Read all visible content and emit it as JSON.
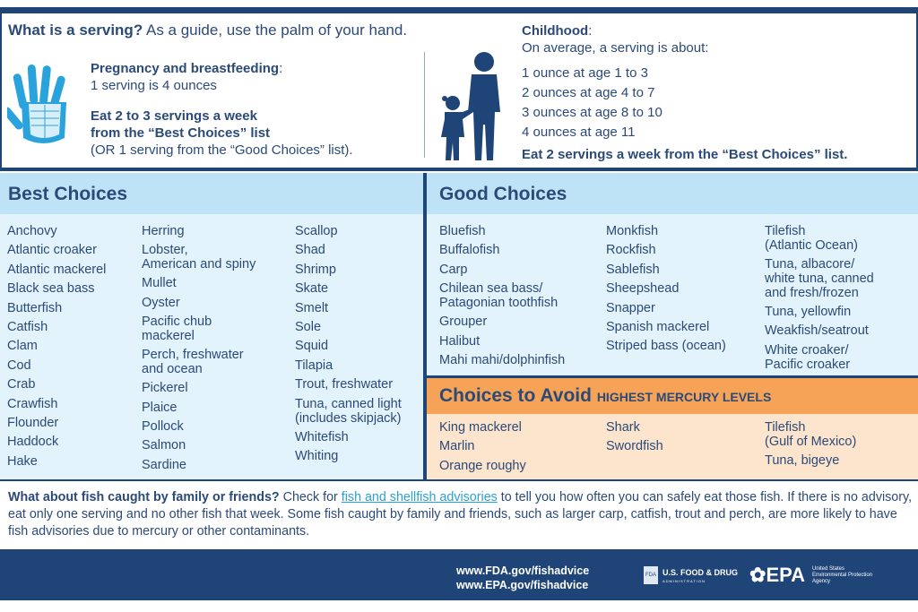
{
  "serving": {
    "question_bold": "What is a serving?",
    "question_rest": " As a guide, use the palm of your hand.",
    "pregnancy_title": "Pregnancy and breastfeeding",
    "pregnancy_colon": ":",
    "pregnancy_line": "1 serving is 4 ounces",
    "eat_line1": "Eat 2 to 3 servings a week",
    "eat_line2": "from the “Best Choices” list",
    "eat_line3": "(OR 1 serving from the “Good Choices” list)."
  },
  "childhood": {
    "title": "Childhood",
    "colon": ":",
    "intro": "On average, a serving is about:",
    "ages": [
      "1 ounce at age 1 to 3",
      "2 ounces at age 4 to 7",
      "3 ounces at age 8 to 10",
      "4 ounces at age 11"
    ],
    "eat": "Eat 2 servings a week from the “Best Choices” list."
  },
  "best": {
    "title": "Best Choices",
    "columns": [
      [
        "Anchovy",
        "Atlantic croaker",
        "Atlantic mackerel",
        "Black sea bass",
        "Butterfish",
        "Catfish",
        "Clam",
        "Cod",
        "Crab",
        "Crawfish",
        "Flounder",
        "Haddock",
        "Hake"
      ],
      [
        "Herring",
        "Lobster,\nAmerican and spiny",
        "Mullet",
        "Oyster",
        "Pacific chub\nmackerel",
        "Perch, freshwater\nand ocean",
        "Pickerel",
        "Plaice",
        "Pollock",
        "Salmon",
        "Sardine"
      ],
      [
        "Scallop",
        "Shad",
        "Shrimp",
        "Skate",
        "Smelt",
        "Sole",
        "Squid",
        "Tilapia",
        "Trout, freshwater",
        "Tuna, canned light\n(includes skipjack)",
        "Whitefish",
        "Whiting"
      ]
    ]
  },
  "good": {
    "title": "Good Choices",
    "columns": [
      [
        "Bluefish",
        "Buffalofish",
        "Carp",
        "Chilean sea bass/\nPatagonian toothfish",
        "Grouper",
        "Halibut",
        "Mahi mahi/dolphinfish"
      ],
      [
        "Monkfish",
        "Rockfish",
        "Sablefish",
        "Sheepshead",
        "Snapper",
        "Spanish mackerel",
        "Striped bass (ocean)"
      ],
      [
        "Tilefish\n(Atlantic Ocean)",
        "Tuna, albacore/\nwhite tuna, canned\nand fresh/frozen",
        "Tuna, yellowfin",
        "Weakfish/seatrout",
        "White croaker/\nPacific croaker"
      ]
    ]
  },
  "avoid": {
    "title": "Choices to Avoid",
    "subtitle": "HIGHEST MERCURY LEVELS",
    "columns": [
      [
        "King mackerel",
        "Marlin",
        "Orange roughy"
      ],
      [
        "Shark",
        "Swordfish"
      ],
      [
        "Tilefish\n(Gulf of Mexico)",
        "Tuna, bigeye"
      ]
    ]
  },
  "bottom": {
    "bold": "What about fish caught by family or friends?",
    "pre": " Check for ",
    "link": "fish and shellfish advisories",
    "post": " to tell you how often you can safely eat those fish. If there is no advisory, eat only one serving and no other fish that week. Some fish caught by family and friends, such as larger carp, catfish, trout and perch, are more likely to have fish advisories due to mercury or other contaminants."
  },
  "footer": {
    "url1": "www.FDA.gov/fishadvice",
    "url2": "www.EPA.gov/fishadvice",
    "fda_logo": "U.S. FOOD & DRUG",
    "fda_sub": "ADMINISTRATION",
    "fda_mark": "FDA",
    "epa_logo": "EPA",
    "epa_sub1": "United States",
    "epa_sub2": "Environmental Protection",
    "epa_sub3": "Agency"
  },
  "colors": {
    "navy": "#1f4477",
    "best_header": "#bfe3f6",
    "best_body": "#e2f3fb",
    "avoid_header": "#f6a358",
    "avoid_body": "#fde4cd",
    "hand": "#2aa3dd"
  }
}
